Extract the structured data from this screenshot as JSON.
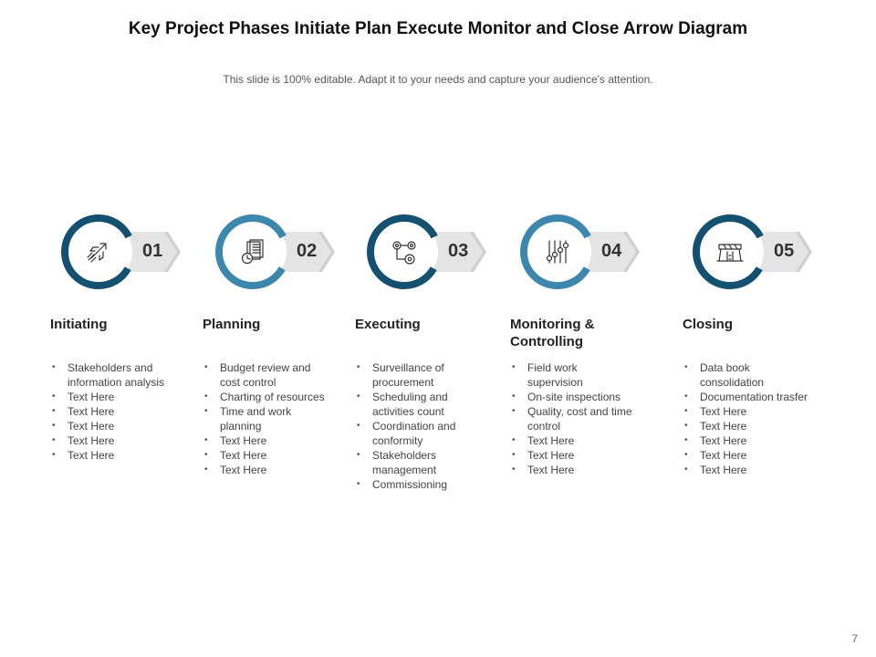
{
  "slide": {
    "title": "Key Project Phases Initiate  Plan Execute Monitor  and Close Arrow Diagram",
    "subtitle": "This slide is 100% editable. Adapt it to your needs and capture your audience's attention.",
    "page_number": "7"
  },
  "colors": {
    "dark_blue": "#14506f",
    "light_blue": "#3d87ad",
    "arrow_gray": "#e4e4e4",
    "icon_stroke": "#333333"
  },
  "phases": [
    {
      "number": "01",
      "heading": "Initiating",
      "heading_lines": [
        "Initiating"
      ],
      "icon": "rocket-icon",
      "ring_color": "dark_blue",
      "bullets": [
        [
          "Stakeholders and",
          "information analysis"
        ],
        [
          "Text Here"
        ],
        [
          "Text Here"
        ],
        [
          "Text Here"
        ],
        [
          "Text Here"
        ],
        [
          "Text Here"
        ]
      ]
    },
    {
      "number": "02",
      "heading": "Planning",
      "heading_lines": [
        "Planning"
      ],
      "icon": "planning-document-clock-icon",
      "ring_color": "light_blue",
      "bullets": [
        [
          "Budget review  and",
          "cost control"
        ],
        [
          "Charting of resources"
        ],
        [
          "Time and work",
          "planning"
        ],
        [
          "Text Here"
        ],
        [
          "Text Here"
        ],
        [
          "Text Here"
        ]
      ]
    },
    {
      "number": "03",
      "heading": "Executing",
      "heading_lines": [
        "Executing"
      ],
      "icon": "gears-icon",
      "ring_color": "dark_blue",
      "bullets": [
        [
          "Surveillance  of",
          "procurement"
        ],
        [
          "Scheduling and",
          "activities count"
        ],
        [
          "Coordination  and",
          "conformity"
        ],
        [
          "Stakeholders",
          "management"
        ],
        [
          "Commissioning"
        ]
      ]
    },
    {
      "number": "04",
      "heading": "Monitoring & Controlling",
      "heading_lines": [
        "Monitoring &",
        "Controlling"
      ],
      "icon": "control-sliders-icon",
      "ring_color": "light_blue",
      "bullets": [
        [
          "Field work",
          "supervision"
        ],
        [
          "On-site inspections"
        ],
        [
          "Quality, cost and time",
          "control"
        ],
        [
          "Text Here"
        ],
        [
          "Text Here"
        ],
        [
          "Text Here"
        ]
      ]
    },
    {
      "number": "05",
      "heading": "Closing",
      "heading_lines": [
        "Closing"
      ],
      "icon": "road-barrier-icon",
      "ring_color": "dark_blue",
      "bullets": [
        [
          "Data book",
          "consolidation"
        ],
        [
          "Documentation trasfer"
        ],
        [
          "Text Here"
        ],
        [
          "Text Here"
        ],
        [
          "Text Here"
        ],
        [
          "Text Here"
        ],
        [
          "Text Here"
        ]
      ]
    }
  ]
}
